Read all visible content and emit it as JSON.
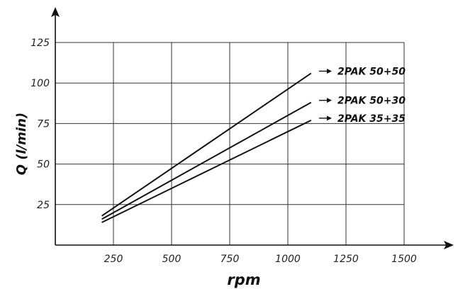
{
  "chart_data": {
    "type": "line",
    "xlabel": "rpm",
    "ylabel": "Q (l/min)",
    "x_ticks": [
      250,
      500,
      750,
      1000,
      1250,
      1500
    ],
    "y_ticks": [
      25,
      50,
      75,
      100,
      125
    ],
    "xlim": [
      0,
      1500
    ],
    "ylim": [
      0,
      125
    ],
    "grid": true,
    "legend_placement": "right",
    "series": [
      {
        "name": "2PAK 50+50",
        "x": [
          200,
          1100
        ],
        "y": [
          18,
          106
        ]
      },
      {
        "name": "2PAK 50+30",
        "x": [
          200,
          1100
        ],
        "y": [
          16,
          88
        ]
      },
      {
        "name": "2PAK 35+35",
        "x": [
          200,
          1100
        ],
        "y": [
          14,
          77
        ]
      }
    ]
  }
}
